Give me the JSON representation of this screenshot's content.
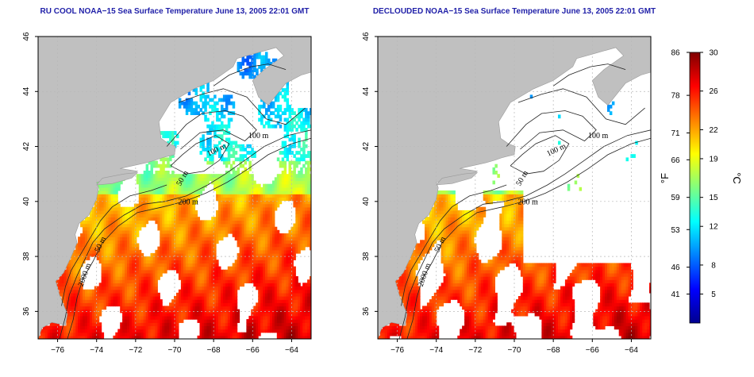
{
  "chart_data": [
    {
      "type": "heatmap",
      "title": "RU COOL NOAA−15 Sea Surface Temperature June 13, 2005 22:01 GMT",
      "x_ticks": [
        "−76",
        "−74",
        "−72",
        "−70",
        "−68",
        "−66",
        "−64"
      ],
      "y_ticks": [
        "36",
        "38",
        "40",
        "42",
        "44",
        "46"
      ],
      "xlim": [
        -77,
        -63
      ],
      "ylim": [
        35,
        46
      ],
      "grid": true,
      "contour_labels": [
        "100 m",
        "100 m",
        "50 m",
        "200 m",
        "50 m",
        "2000 m"
      ]
    },
    {
      "type": "heatmap",
      "title": "DECLOUDED NOAA−15 Sea Surface Temperature June 13, 2005 22:01 GMT",
      "x_ticks": [
        "−76",
        "−74",
        "−72",
        "−70",
        "−68",
        "−66",
        "−64"
      ],
      "y_ticks": [
        "36",
        "38",
        "40",
        "42",
        "44",
        "46"
      ],
      "xlim": [
        -77,
        -63
      ],
      "ylim": [
        35,
        46
      ],
      "grid": true,
      "contour_labels": [
        "100 m",
        "100 m",
        "50 m",
        "200 m",
        "50 m",
        "2000 m"
      ]
    }
  ],
  "colorbar": {
    "fahrenheit_label": "°F",
    "celsius_label": "°C",
    "fahrenheit_ticks": [
      "86",
      "78",
      "71",
      "66",
      "59",
      "53",
      "46",
      "41"
    ],
    "celsius_ticks": [
      "30",
      "26",
      "22",
      "19",
      "15",
      "12",
      "8",
      "5"
    ],
    "celsius_range": [
      2,
      30
    ],
    "colors": [
      "#00008f",
      "#0000ff",
      "#0080ff",
      "#00ffff",
      "#80ff80",
      "#ffff00",
      "#ff8000",
      "#ff0000",
      "#800000"
    ]
  },
  "colors": {
    "land": "#c0c0c0",
    "water_nodata": "#ffffff",
    "grid": "#b8b8b8",
    "title": "#1f1fa8"
  }
}
